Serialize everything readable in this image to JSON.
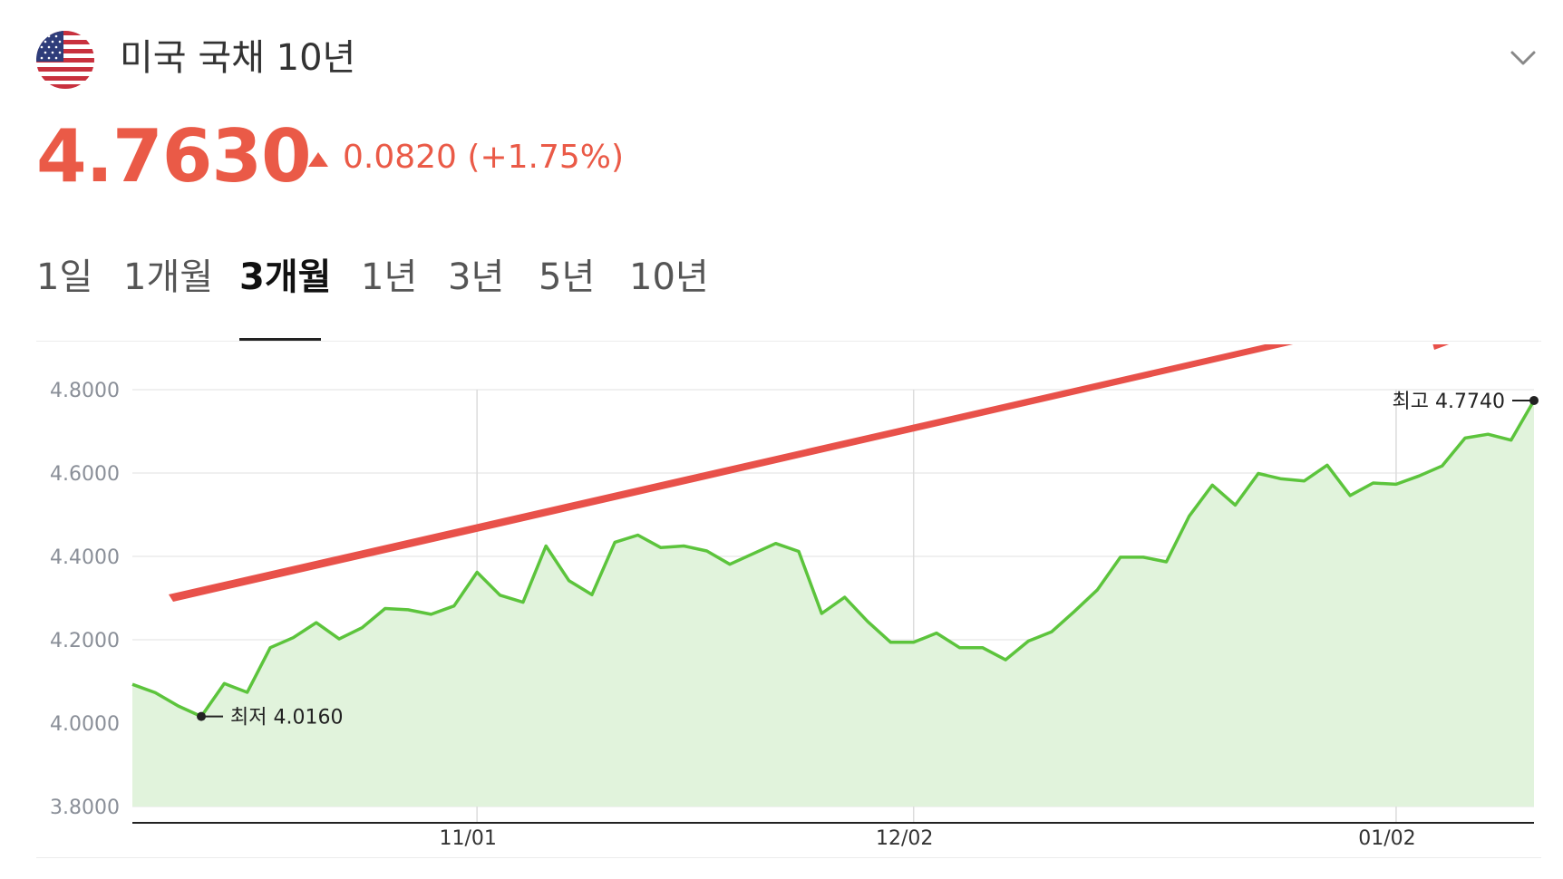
{
  "header": {
    "title": "미국 국채 10년",
    "flag_icon": "us-flag-icon",
    "chevron_icon": "chevron-down-icon"
  },
  "quote": {
    "price": "4.7630",
    "change_icon": "triangle-up-icon",
    "change": "0.0820 (+1.75%)",
    "color": "#ea5a47"
  },
  "tabs": [
    {
      "label": "1일",
      "active": false
    },
    {
      "label": "1개월",
      "active": false
    },
    {
      "label": "3개월",
      "active": true
    },
    {
      "label": "1년",
      "active": false
    },
    {
      "label": "3년",
      "active": false
    },
    {
      "label": "5년",
      "active": false
    },
    {
      "label": "10년",
      "active": false
    }
  ],
  "chart_data": {
    "type": "area",
    "y_ticks": [
      "4.8000",
      "4.6000",
      "4.4000",
      "4.2000",
      "4.0000",
      "3.8000"
    ],
    "ylim": [
      3.8,
      4.8
    ],
    "x_ticks": [
      {
        "label": "11/01",
        "index": 15
      },
      {
        "label": "12/02",
        "index": 34
      },
      {
        "label": "01/02",
        "index": 55
      }
    ],
    "grid": true,
    "line_color": "#5cc43c",
    "fill_color": "#e1f3dc",
    "series": [
      {
        "values": [
          4.093,
          4.073,
          4.041,
          4.016,
          4.095,
          4.074,
          4.181,
          4.205,
          4.241,
          4.202,
          4.229,
          4.275,
          4.272,
          4.261,
          4.281,
          4.362,
          4.307,
          4.29,
          4.425,
          4.342,
          4.308,
          4.434,
          4.451,
          4.421,
          4.425,
          4.413,
          4.381,
          4.406,
          4.431,
          4.412,
          4.263,
          4.302,
          4.244,
          4.194,
          4.194,
          4.216,
          4.181,
          4.181,
          4.152,
          4.197,
          4.219,
          4.268,
          4.32,
          4.398,
          4.398,
          4.387,
          4.497,
          4.571,
          4.523,
          4.599,
          4.586,
          4.581,
          4.619,
          4.546,
          4.576,
          4.573,
          4.593,
          4.617,
          4.684,
          4.693,
          4.679,
          4.774
        ]
      }
    ],
    "annotations": {
      "low": {
        "label": "최저 4.0160",
        "index": 3,
        "value": 4.016
      },
      "high": {
        "label": "최고 4.7740",
        "index": 61,
        "value": 4.774
      }
    },
    "overlay_arrow_color": "#e8514a"
  }
}
